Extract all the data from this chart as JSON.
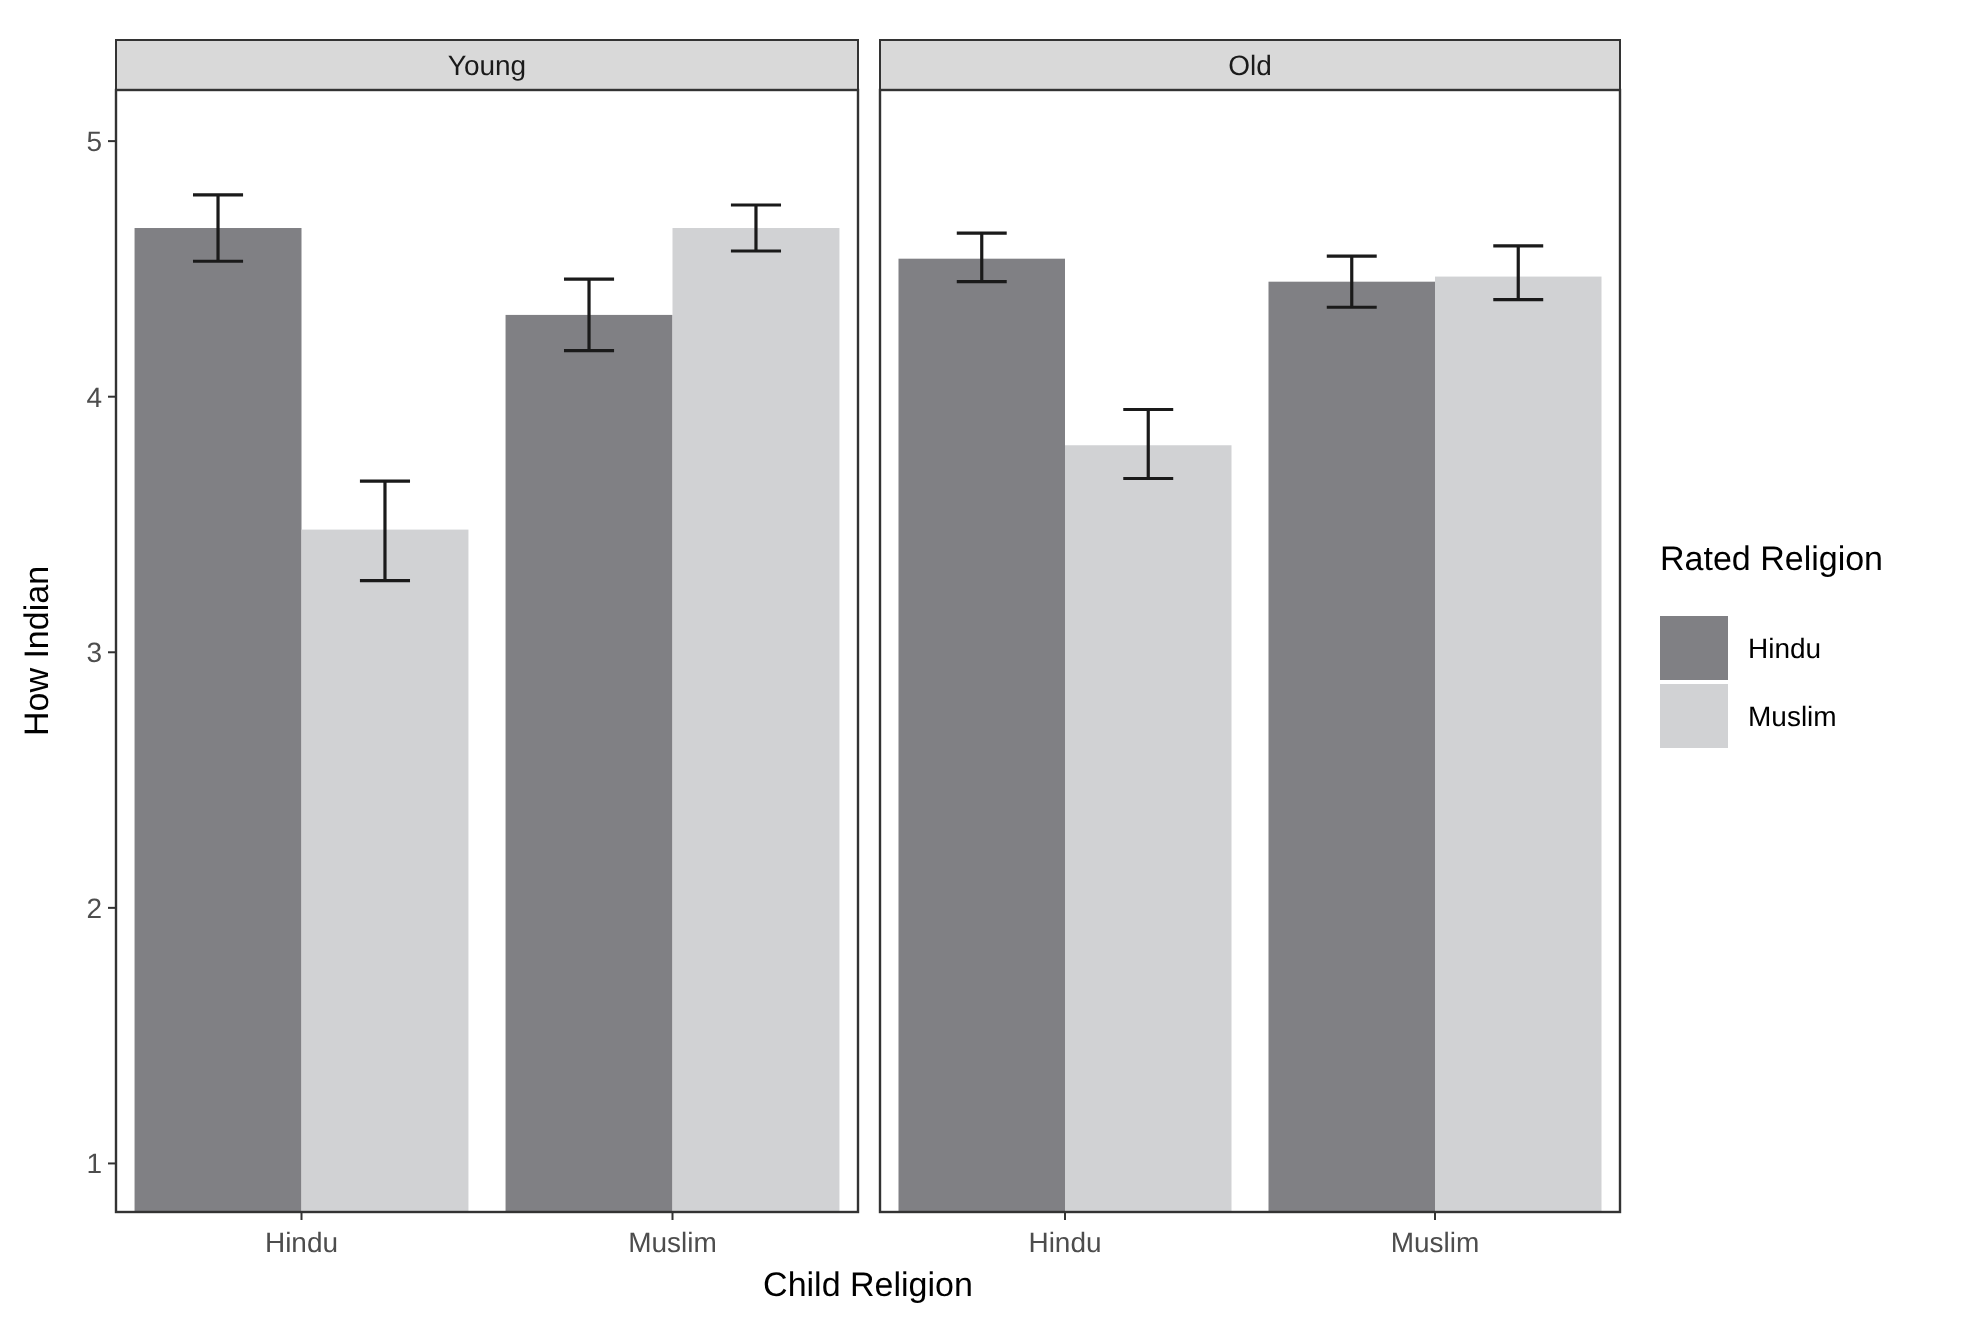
{
  "chart_data": [
    {
      "type": "bar",
      "title": "Young",
      "ylabel": "How Indian",
      "xlabel": "Child Religion",
      "categories": [
        "Hindu",
        "Muslim"
      ],
      "ylim": [
        0.81,
        5.2
      ],
      "yticks": [
        1,
        2,
        3,
        4,
        5
      ],
      "grid": false,
      "series": [
        {
          "color": "#808084",
          "values": [
            4.66,
            4.32
          ],
          "errors": [
            [
              4.53,
              4.79
            ],
            [
              4.18,
              4.46
            ]
          ]
        },
        {
          "color": "#d1d2d4",
          "values": [
            3.48,
            4.66
          ],
          "errors": [
            [
              3.28,
              3.67
            ],
            [
              4.57,
              4.75
            ]
          ]
        }
      ]
    },
    {
      "type": "bar",
      "title": "Old",
      "categories": [
        "Hindu",
        "Muslim"
      ],
      "ylim": [
        0.81,
        5.2
      ],
      "yticks": [
        1,
        2,
        3,
        4,
        5
      ],
      "grid": false,
      "tick_labels": "x",
      "legend": "right",
      "legend_title": "Rated Religion",
      "series": [
        {
          "name": "Hindu",
          "color": "#808084",
          "values": [
            4.54,
            4.45
          ],
          "errors": [
            [
              4.45,
              4.64
            ],
            [
              4.35,
              4.55
            ]
          ]
        },
        {
          "name": "Muslim",
          "color": "#d1d2d4",
          "values": [
            3.81,
            4.47
          ],
          "errors": [
            [
              3.68,
              3.95
            ],
            [
              4.38,
              4.59
            ]
          ]
        }
      ]
    }
  ]
}
